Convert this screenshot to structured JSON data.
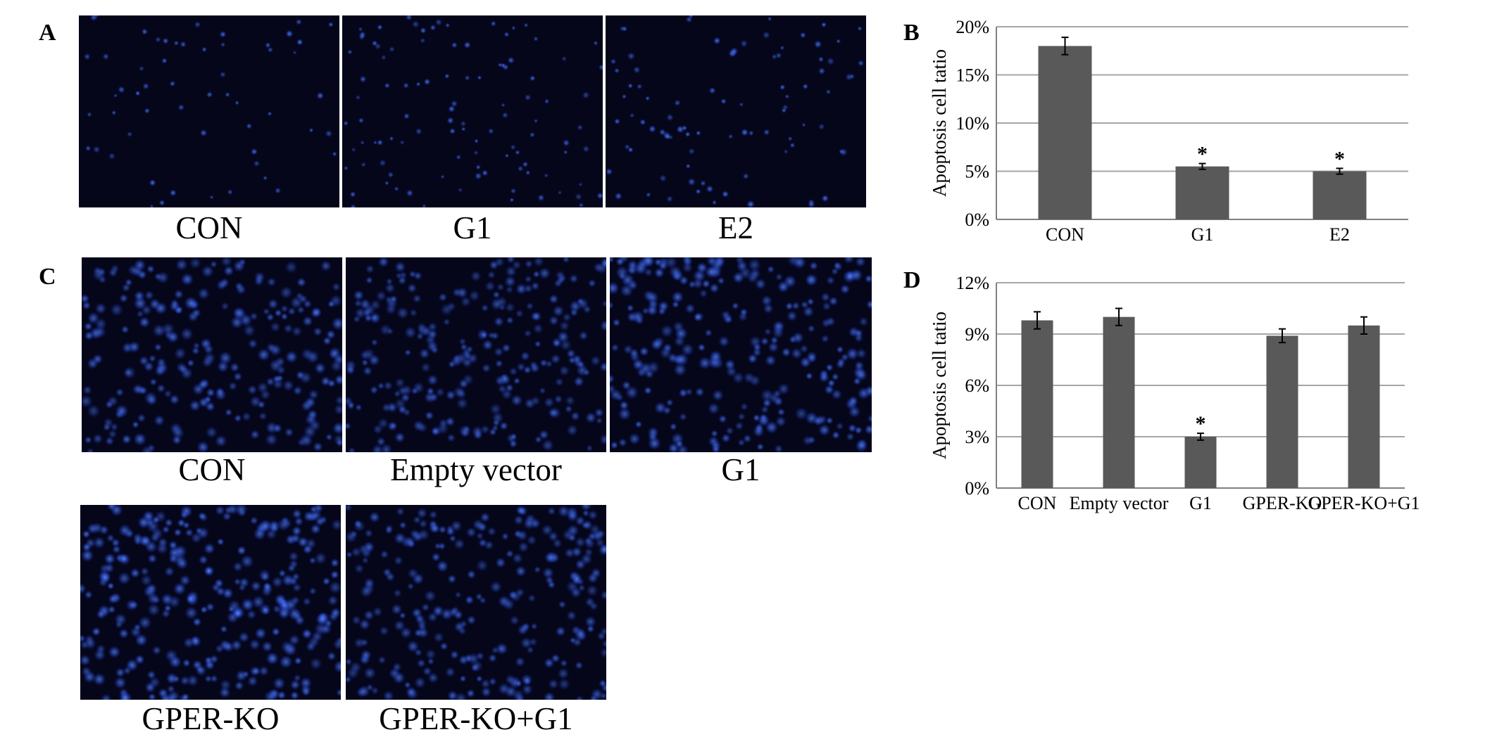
{
  "panel_a": {
    "letter": "A",
    "images": [
      {
        "caption": "CON"
      },
      {
        "caption": "G1"
      },
      {
        "caption": "E2"
      }
    ]
  },
  "panel_c": {
    "letter": "C",
    "images": [
      {
        "caption": "CON"
      },
      {
        "caption": "Empty vector"
      },
      {
        "caption": "G1"
      },
      {
        "caption": "GPER-KO"
      },
      {
        "caption": "GPER-KO+G1"
      }
    ]
  },
  "colors": {
    "bar": "#595959",
    "grid": "#a6a6a6",
    "image_background": "#05061a",
    "nucleus": "#2a5cff"
  },
  "chart_data": [
    {
      "letter": "B",
      "type": "bar",
      "ylabel": "Apoptosis cell tatio",
      "categories": [
        "CON",
        "G1",
        "E2"
      ],
      "values": [
        18,
        5.5,
        5
      ],
      "errors": [
        0.9,
        0.3,
        0.3
      ],
      "significance": [
        "",
        "*",
        "*"
      ],
      "ylim": [
        0,
        20
      ],
      "yticks": [
        0,
        5,
        10,
        15,
        20
      ],
      "ytick_labels": [
        "0%",
        "5%",
        "10%",
        "15%",
        "20%"
      ],
      "grid": true
    },
    {
      "letter": "D",
      "type": "bar",
      "ylabel": "Apoptosis cell tatio",
      "categories": [
        "CON",
        "Empty vector",
        "G1",
        "GPER-KO",
        "GPER-KO+G1"
      ],
      "values": [
        9.8,
        10,
        3,
        8.9,
        9.5
      ],
      "errors": [
        0.5,
        0.5,
        0.2,
        0.4,
        0.5
      ],
      "significance": [
        "",
        "",
        "*",
        "",
        ""
      ],
      "ylim": [
        0,
        12
      ],
      "yticks": [
        0,
        3,
        6,
        9,
        12
      ],
      "ytick_labels": [
        "0%",
        "3%",
        "6%",
        "9%",
        "12%"
      ],
      "grid": true
    }
  ]
}
